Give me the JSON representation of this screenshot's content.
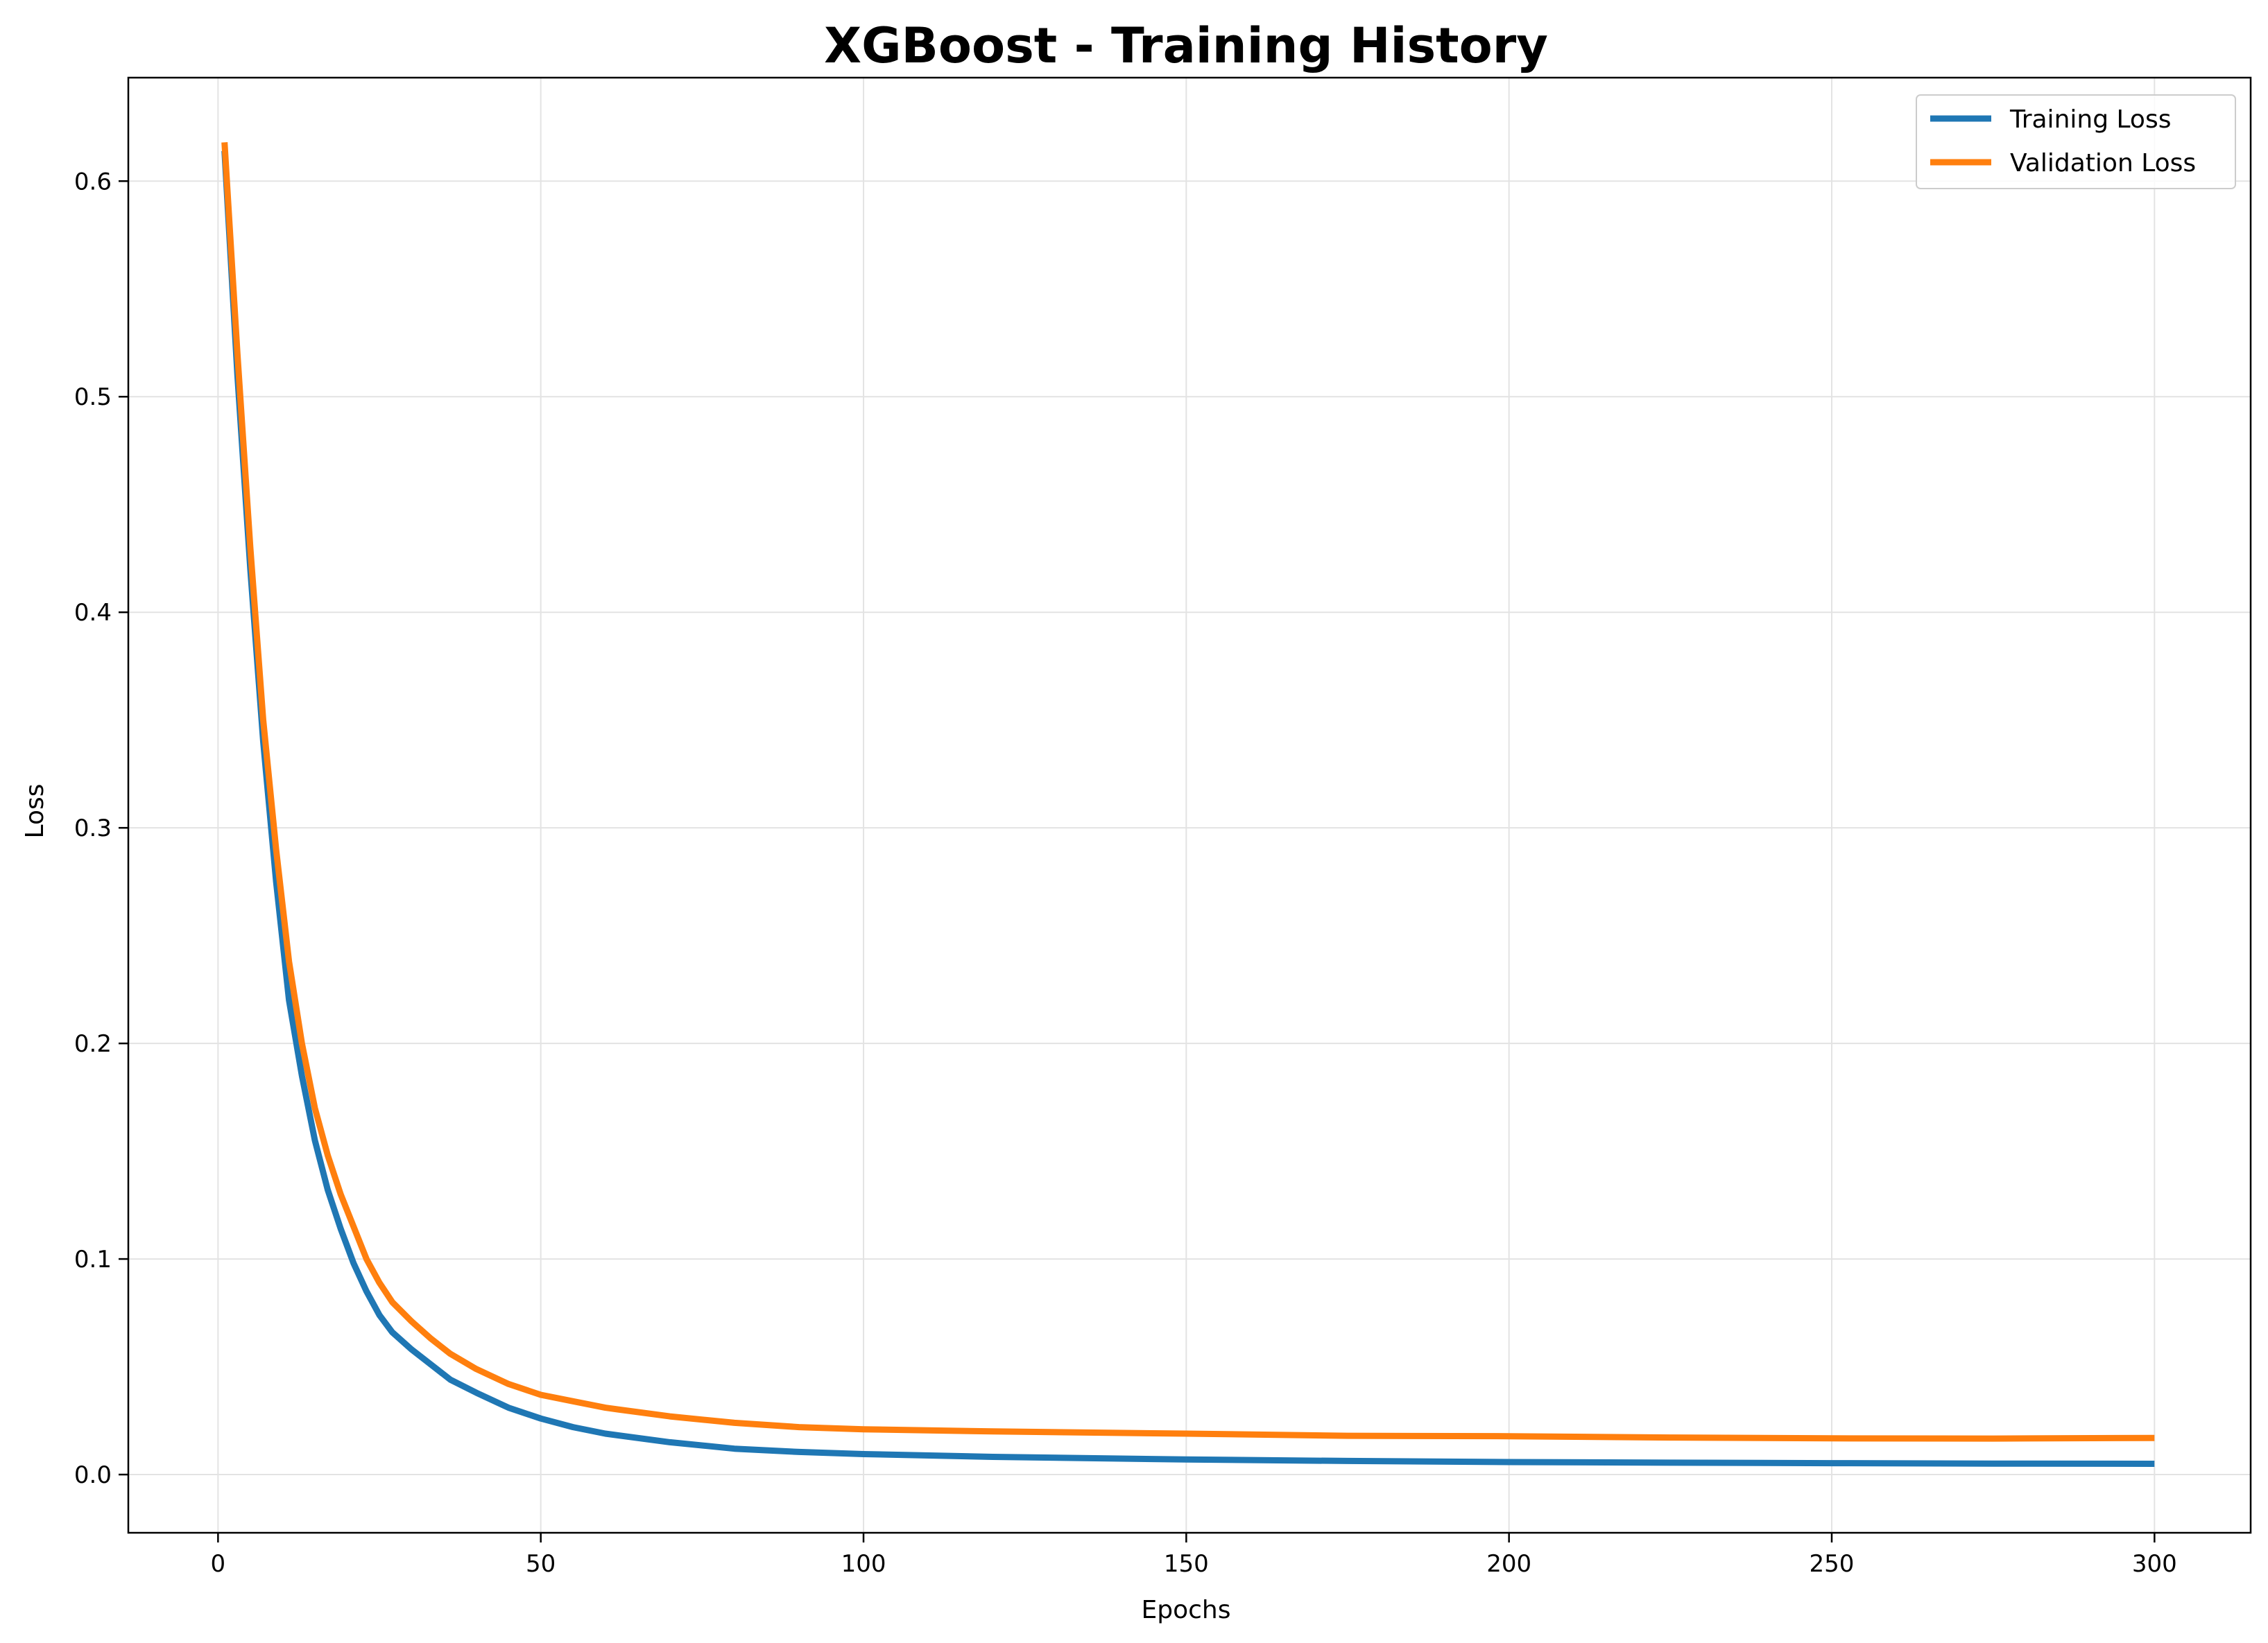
{
  "chart_data": {
    "type": "line",
    "title": "XGBoost - Training History",
    "xlabel": "Epochs",
    "ylabel": "Loss",
    "xlim": [
      -13.9,
      314.9
    ],
    "ylim": [
      -0.027,
      0.648
    ],
    "xticks": [
      0,
      50,
      100,
      150,
      200,
      250,
      300
    ],
    "yticks": [
      0.0,
      0.1,
      0.2,
      0.3,
      0.4,
      0.5,
      0.6
    ],
    "ytick_labels": [
      "0.0",
      "0.1",
      "0.2",
      "0.3",
      "0.4",
      "0.5",
      "0.6"
    ],
    "grid": true,
    "legend_position": "top-right",
    "series": [
      {
        "name": "Training Loss",
        "color": "#1f77b4",
        "points": [
          [
            1,
            0.614
          ],
          [
            3,
            0.51
          ],
          [
            5,
            0.42
          ],
          [
            7,
            0.34
          ],
          [
            9,
            0.275
          ],
          [
            11,
            0.22
          ],
          [
            13,
            0.185
          ],
          [
            15,
            0.155
          ],
          [
            17,
            0.132
          ],
          [
            19,
            0.114
          ],
          [
            21,
            0.098
          ],
          [
            23,
            0.085
          ],
          [
            25,
            0.074
          ],
          [
            27,
            0.066
          ],
          [
            30,
            0.058
          ],
          [
            33,
            0.051
          ],
          [
            36,
            0.044
          ],
          [
            40,
            0.038
          ],
          [
            45,
            0.031
          ],
          [
            50,
            0.026
          ],
          [
            55,
            0.022
          ],
          [
            60,
            0.019
          ],
          [
            70,
            0.015
          ],
          [
            80,
            0.012
          ],
          [
            90,
            0.0105
          ],
          [
            100,
            0.0095
          ],
          [
            120,
            0.0082
          ],
          [
            150,
            0.007
          ],
          [
            175,
            0.0063
          ],
          [
            200,
            0.0058
          ],
          [
            225,
            0.0055
          ],
          [
            250,
            0.0053
          ],
          [
            275,
            0.0051
          ],
          [
            300,
            0.005
          ]
        ]
      },
      {
        "name": "Validation Loss",
        "color": "#ff7f0e",
        "points": [
          [
            1,
            0.618
          ],
          [
            3,
            0.52
          ],
          [
            5,
            0.43
          ],
          [
            7,
            0.35
          ],
          [
            9,
            0.29
          ],
          [
            11,
            0.238
          ],
          [
            13,
            0.2
          ],
          [
            15,
            0.17
          ],
          [
            17,
            0.148
          ],
          [
            19,
            0.13
          ],
          [
            21,
            0.115
          ],
          [
            23,
            0.1
          ],
          [
            25,
            0.089
          ],
          [
            27,
            0.08
          ],
          [
            30,
            0.071
          ],
          [
            33,
            0.063
          ],
          [
            36,
            0.056
          ],
          [
            40,
            0.049
          ],
          [
            45,
            0.042
          ],
          [
            50,
            0.037
          ],
          [
            55,
            0.034
          ],
          [
            60,
            0.031
          ],
          [
            70,
            0.027
          ],
          [
            80,
            0.024
          ],
          [
            90,
            0.022
          ],
          [
            100,
            0.021
          ],
          [
            120,
            0.02
          ],
          [
            150,
            0.019
          ],
          [
            175,
            0.018
          ],
          [
            200,
            0.0178
          ],
          [
            225,
            0.0172
          ],
          [
            250,
            0.0168
          ],
          [
            275,
            0.0167
          ],
          [
            300,
            0.017
          ]
        ]
      }
    ]
  }
}
